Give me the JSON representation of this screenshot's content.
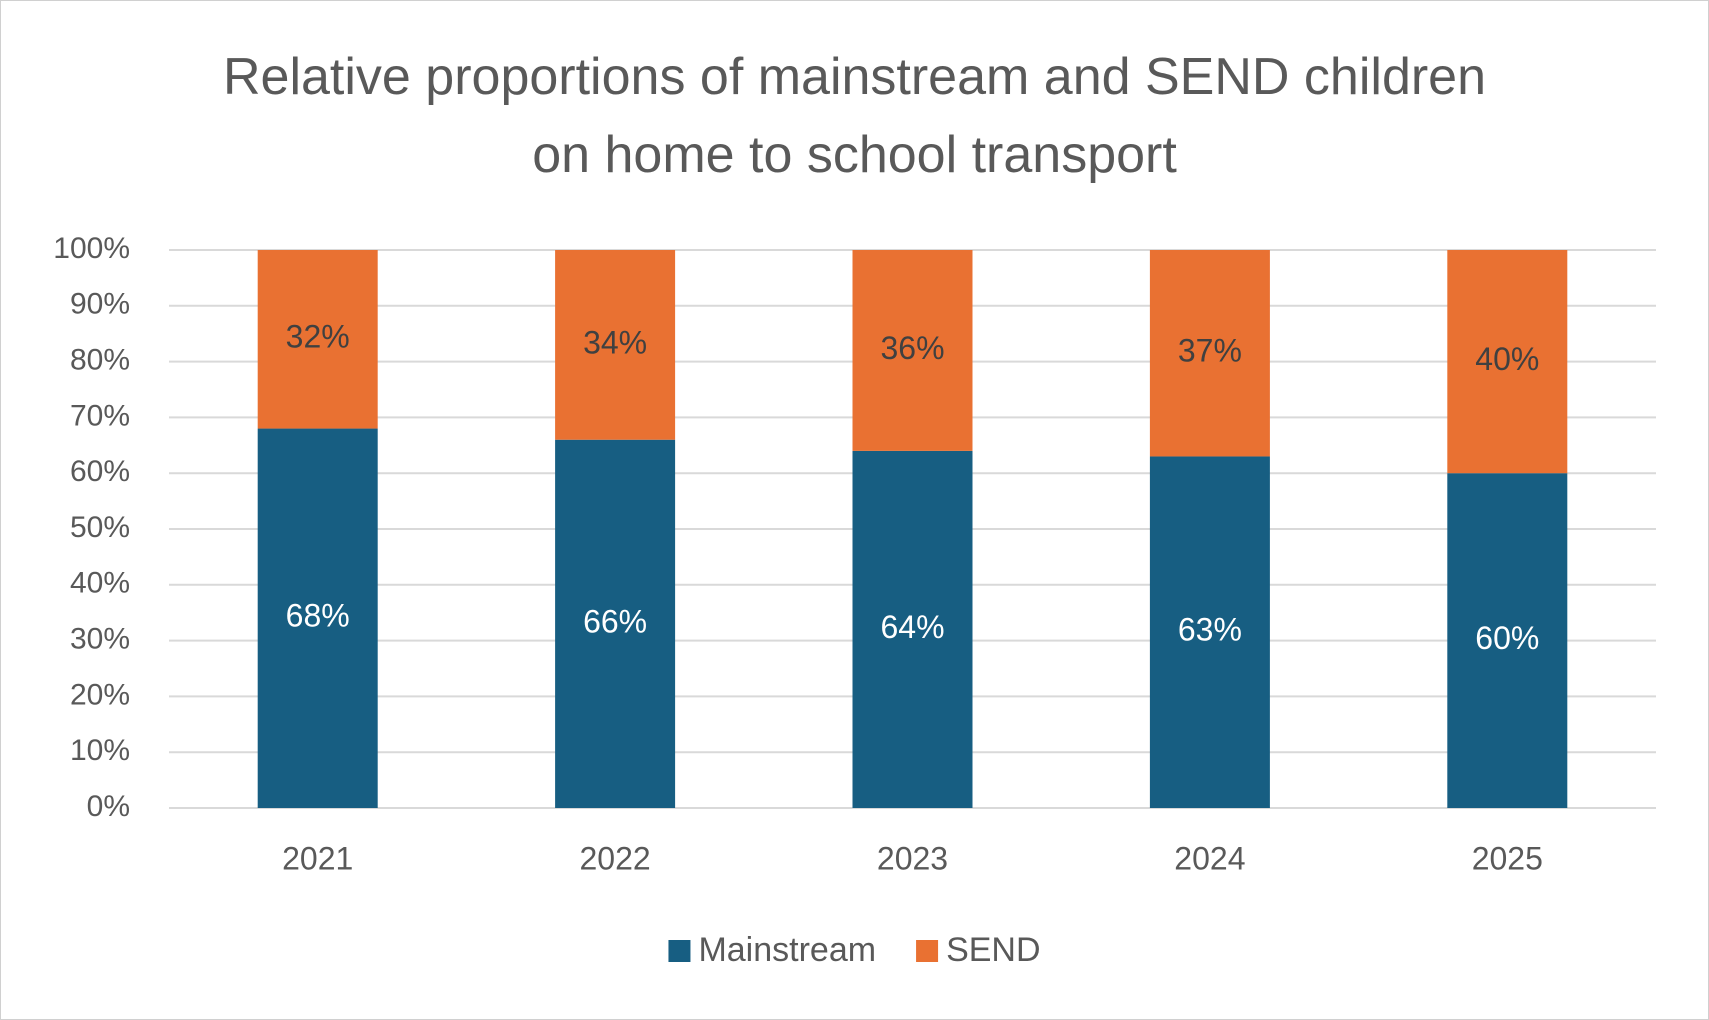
{
  "chart_data": {
    "type": "stacked_bar",
    "title": "Relative proportions of mainstream and SEND children on home to school transport",
    "categories": [
      "2021",
      "2022",
      "2023",
      "2024",
      "2025"
    ],
    "series": [
      {
        "name": "Mainstream",
        "color": "#175e82",
        "label_color": "#ffffff",
        "values": [
          68,
          66,
          64,
          63,
          60
        ],
        "value_labels": [
          "68%",
          "66%",
          "64%",
          "63%",
          "60%"
        ]
      },
      {
        "name": "SEND",
        "color": "#e97132",
        "label_color": "#404040",
        "values": [
          32,
          34,
          36,
          37,
          40
        ],
        "value_labels": [
          "32%",
          "34%",
          "36%",
          "37%",
          "40%"
        ]
      }
    ],
    "ylim": [
      0,
      100
    ],
    "yticks": [
      {
        "value": 0,
        "label": "0%"
      },
      {
        "value": 10,
        "label": "10%"
      },
      {
        "value": 20,
        "label": "20%"
      },
      {
        "value": 30,
        "label": "30%"
      },
      {
        "value": 40,
        "label": "40%"
      },
      {
        "value": 50,
        "label": "50%"
      },
      {
        "value": 60,
        "label": "60%"
      },
      {
        "value": 70,
        "label": "70%"
      },
      {
        "value": 80,
        "label": "80%"
      },
      {
        "value": 90,
        "label": "90%"
      },
      {
        "value": 100,
        "label": "100%"
      }
    ],
    "grid": true,
    "legend": "bottom"
  }
}
